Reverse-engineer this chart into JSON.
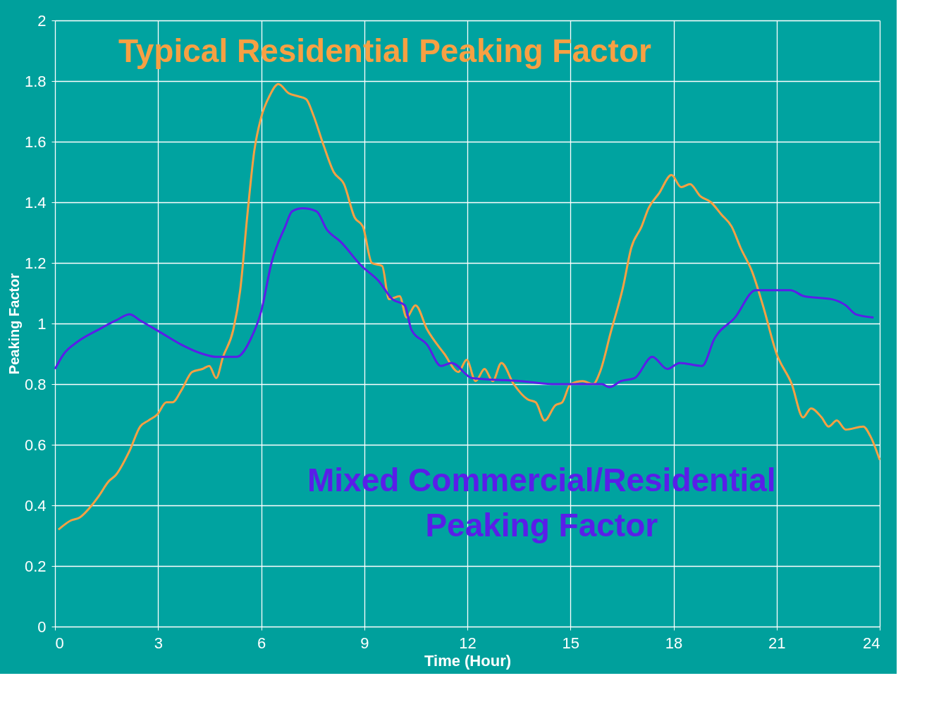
{
  "chart_data": {
    "type": "line",
    "xlabel": "Time (Hour)",
    "ylabel": "Peaking Factor",
    "xlim": [
      0,
      24
    ],
    "xticks": [
      0,
      3,
      6,
      9,
      12,
      15,
      18,
      21,
      24
    ],
    "ylim": [
      0,
      2
    ],
    "yticks": [
      0,
      0.2,
      0.4,
      0.6,
      0.8,
      1,
      1.2,
      1.4,
      1.6,
      1.8,
      2
    ],
    "grid": true,
    "legend": false,
    "marker": "none",
    "line_style": "solid",
    "series": [
      {
        "name": "Typical Residential Peaking Factor",
        "color": "#f7a043",
        "x": [
          0.1,
          0.46,
          0.72,
          1.07,
          1.27,
          1.57,
          1.77,
          2.17,
          2.48,
          2.72,
          2.98,
          3.24,
          3.42,
          3.68,
          3.99,
          4.29,
          4.49,
          4.69,
          4.89,
          5.19,
          5.39,
          5.6,
          5.8,
          6.0,
          6.24,
          6.5,
          6.8,
          7.07,
          7.31,
          7.51,
          7.81,
          8.11,
          8.41,
          8.72,
          8.96,
          9.22,
          9.52,
          9.72,
          10.03,
          10.23,
          10.49,
          10.83,
          11.33,
          11.74,
          11.98,
          12.24,
          12.5,
          12.74,
          12.99,
          13.35,
          13.75,
          13.99,
          14.25,
          14.56,
          14.76,
          15.0,
          15.36,
          15.66,
          15.86,
          16.17,
          16.53,
          16.77,
          17.07,
          17.27,
          17.58,
          17.94,
          18.22,
          18.48,
          18.78,
          19.09,
          19.39,
          19.69,
          19.95,
          20.29,
          20.6,
          21.0,
          21.44,
          21.77,
          22.0,
          22.31,
          22.51,
          22.75,
          23.01,
          23.52,
          23.72,
          24.0
        ],
        "values": [
          0.32,
          0.35,
          0.36,
          0.4,
          0.43,
          0.48,
          0.5,
          0.58,
          0.66,
          0.68,
          0.7,
          0.74,
          0.74,
          0.78,
          0.84,
          0.85,
          0.86,
          0.82,
          0.89,
          0.98,
          1.11,
          1.36,
          1.57,
          1.68,
          1.75,
          1.79,
          1.76,
          1.75,
          1.74,
          1.69,
          1.59,
          1.5,
          1.46,
          1.35,
          1.32,
          1.2,
          1.19,
          1.08,
          1.09,
          1.02,
          1.06,
          0.98,
          0.9,
          0.84,
          0.88,
          0.81,
          0.85,
          0.81,
          0.87,
          0.8,
          0.75,
          0.74,
          0.68,
          0.73,
          0.74,
          0.8,
          0.81,
          0.8,
          0.84,
          0.97,
          1.12,
          1.25,
          1.32,
          1.38,
          1.43,
          1.49,
          1.45,
          1.46,
          1.42,
          1.4,
          1.36,
          1.32,
          1.25,
          1.17,
          1.06,
          0.9,
          0.8,
          0.69,
          0.72,
          0.69,
          0.66,
          0.68,
          0.65,
          0.66,
          0.63,
          0.55
        ]
      },
      {
        "name": "Mixed Commercial/Residential\nPeaking Factor",
        "color": "#5a1ee8",
        "x": [
          0,
          0.26,
          0.66,
          1.27,
          1.77,
          2.17,
          2.48,
          3.08,
          3.68,
          4.29,
          4.69,
          5.29,
          5.7,
          6.0,
          6.3,
          6.7,
          6.9,
          7.21,
          7.61,
          7.91,
          8.31,
          8.92,
          9.42,
          9.82,
          10.18,
          10.37,
          10.83,
          11.23,
          11.54,
          12.14,
          13.55,
          14.56,
          15.36,
          15.92,
          16.13,
          16.47,
          16.87,
          17.38,
          17.82,
          18.18,
          18.83,
          19.19,
          19.79,
          20.39,
          21.4,
          21.8,
          22.61,
          23.01,
          23.31,
          23.82
        ],
        "values": [
          0.85,
          0.9,
          0.94,
          0.98,
          1.01,
          1.03,
          1.01,
          0.97,
          0.93,
          0.9,
          0.89,
          0.89,
          0.95,
          1.04,
          1.2,
          1.32,
          1.37,
          1.38,
          1.37,
          1.31,
          1.27,
          1.19,
          1.14,
          1.08,
          1.06,
          0.98,
          0.93,
          0.86,
          0.87,
          0.82,
          0.81,
          0.8,
          0.8,
          0.8,
          0.79,
          0.81,
          0.82,
          0.89,
          0.85,
          0.87,
          0.86,
          0.95,
          1.02,
          1.11,
          1.11,
          1.09,
          1.08,
          1.06,
          1.03,
          1.02
        ]
      }
    ]
  }
}
